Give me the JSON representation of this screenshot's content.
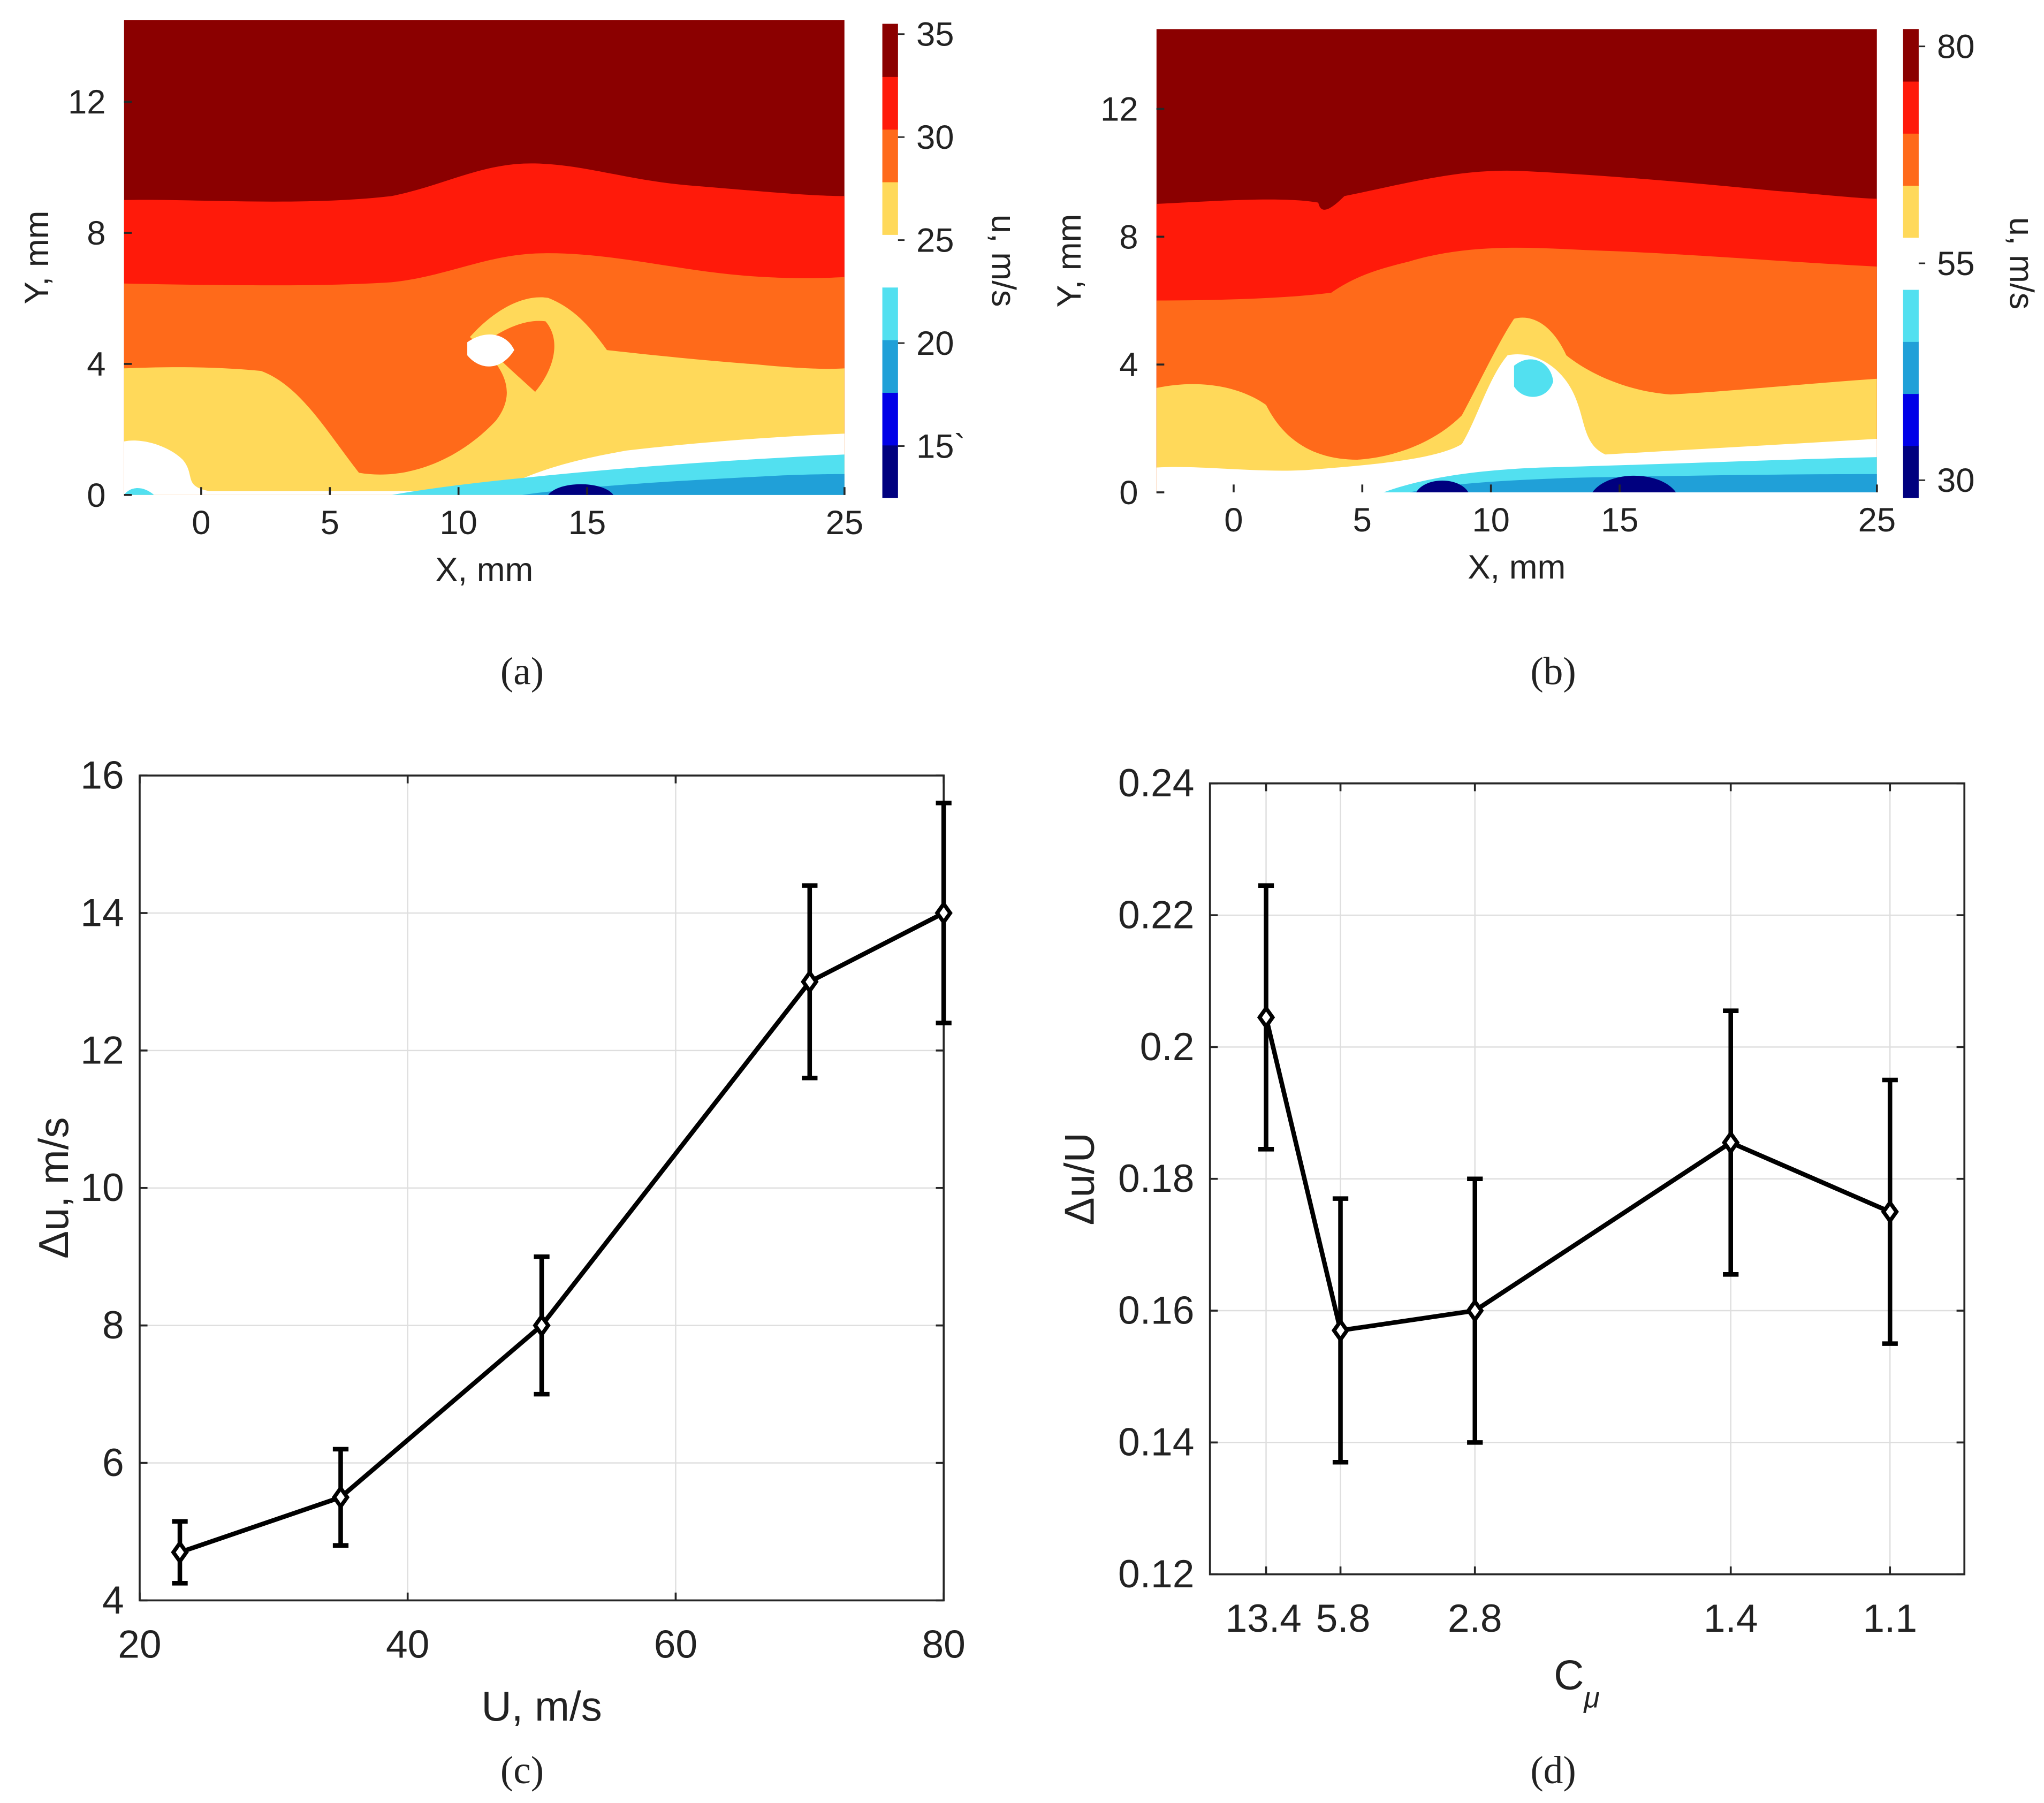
{
  "colors": {
    "levels": [
      "#00007f",
      "#0000e8",
      "#20a0d8",
      "#52e0f0",
      "#ffffff",
      "#ffd95a",
      "#ff6a1a",
      "#ff1a0a",
      "#8b0000"
    ],
    "background": "#ffffff",
    "line": "#000000"
  },
  "chart_data": [
    {
      "id": "a",
      "type": "heatmap",
      "caption": "(a)",
      "xlabel": "X, mm",
      "ylabel": "Y, mm",
      "colorbar_label": "u, m/s",
      "xlim": [
        -3,
        25
      ],
      "ylim": [
        0,
        14.5
      ],
      "xticks": [
        "0",
        "5",
        "10",
        "15",
        "25"
      ],
      "xtick_values": [
        0,
        5,
        10,
        15,
        25
      ],
      "yticks": [
        "0",
        "4",
        "8",
        "12"
      ],
      "ytick_values": [
        0,
        4,
        8,
        12
      ],
      "colorbar_range": [
        12.5,
        35.5
      ],
      "colorbar_ticks": [
        "15`",
        "20",
        "25",
        "30",
        "35"
      ],
      "colorbar_tick_values": [
        15,
        20,
        25,
        30,
        35
      ]
    },
    {
      "id": "b",
      "type": "heatmap",
      "caption": "(b)",
      "xlabel": "X, mm",
      "ylabel": "Y, mm",
      "colorbar_label": "u, m/s",
      "xlim": [
        -3,
        25
      ],
      "ylim": [
        0,
        14.5
      ],
      "xticks": [
        "0",
        "5",
        "10",
        "15",
        "25"
      ],
      "xtick_values": [
        0,
        5,
        10,
        15,
        25
      ],
      "yticks": [
        "0",
        "4",
        "8",
        "12"
      ],
      "ytick_values": [
        0,
        4,
        8,
        12
      ],
      "colorbar_range": [
        28,
        82
      ],
      "colorbar_ticks": [
        "30",
        "55",
        "80"
      ],
      "colorbar_tick_values": [
        30,
        55,
        80
      ]
    },
    {
      "id": "c",
      "type": "line",
      "caption": "(c)",
      "xlabel": "U, m/s",
      "ylabel": "Δu, m/s",
      "xlim": [
        20,
        80
      ],
      "ylim": [
        4,
        16
      ],
      "xticks": [
        "20",
        "40",
        "60",
        "80"
      ],
      "xtick_values": [
        20,
        40,
        60,
        80
      ],
      "yticks": [
        "4",
        "6",
        "8",
        "10",
        "12",
        "14",
        "16"
      ],
      "ytick_values": [
        4,
        6,
        8,
        10,
        12,
        14,
        16
      ],
      "grid": true,
      "series": [
        {
          "name": "Δu",
          "x": [
            23,
            35,
            50,
            70,
            80
          ],
          "y": [
            4.7,
            5.5,
            8.0,
            13.0,
            14.0
          ],
          "err_low": [
            4.25,
            4.8,
            7.0,
            11.6,
            12.4
          ],
          "err_high": [
            5.15,
            6.2,
            9.0,
            14.4,
            15.6
          ]
        }
      ]
    },
    {
      "id": "d",
      "type": "line",
      "caption": "(d)",
      "xlabel": "C",
      "xlabel_sub": "μ",
      "ylabel": "Δu/U",
      "ylim": [
        0.12,
        0.24
      ],
      "yticks": [
        "0.12",
        "0.14",
        "0.16",
        "0.18",
        "0.2",
        "0.22",
        "0.24"
      ],
      "ytick_values": [
        0.12,
        0.14,
        0.16,
        0.18,
        0.2,
        0.22,
        0.24
      ],
      "xticks": [
        "13.4",
        "5.8",
        "2.8",
        "1.4",
        "1.1"
      ],
      "grid": true,
      "series": [
        {
          "name": "Δu/U",
          "x_labels": [
            "13.4",
            "5.8",
            "2.8",
            "1.4",
            "1.1"
          ],
          "y": [
            0.2045,
            0.157,
            0.16,
            0.1855,
            0.175
          ],
          "err_low": [
            0.1845,
            0.137,
            0.14,
            0.1655,
            0.155
          ],
          "err_high": [
            0.2245,
            0.177,
            0.18,
            0.2055,
            0.195
          ]
        }
      ]
    }
  ]
}
